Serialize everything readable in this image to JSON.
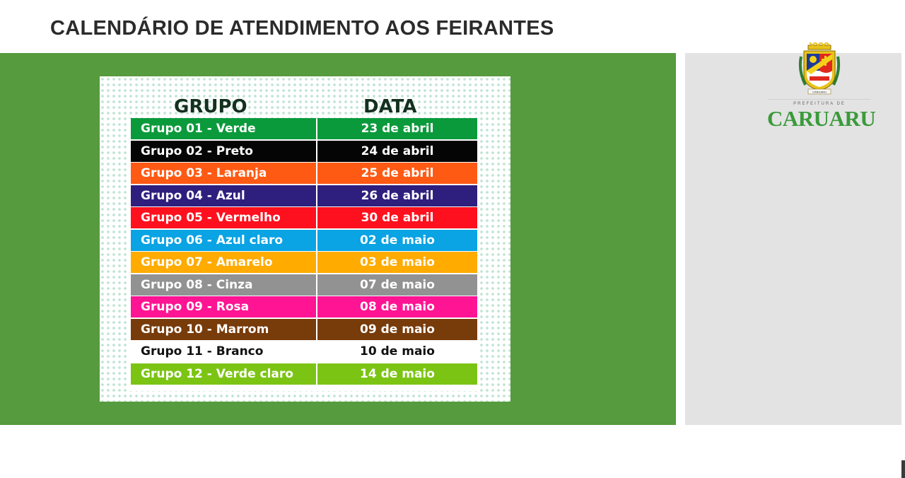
{
  "title": "CALENDÁRIO DE ATENDIMENTO AOS FEIRANTES",
  "table": {
    "header_group": "GRUPO",
    "header_date": "DATA",
    "rows": [
      {
        "group": "Grupo 01 - Verde",
        "date": "23 de abril",
        "color": "#0b9a3b"
      },
      {
        "group": "Grupo 02 - Preto",
        "date": "24 de abril",
        "color": "#050505"
      },
      {
        "group": "Grupo 03 - Laranja",
        "date": "25 de abril",
        "color": "#ff5a14"
      },
      {
        "group": "Grupo 04 - Azul",
        "date": "26 de abril",
        "color": "#2e1f7e"
      },
      {
        "group": "Grupo 05 - Vermelho",
        "date": "30 de abril",
        "color": "#ff101e"
      },
      {
        "group": "Grupo 06 - Azul claro",
        "date": "02 de maio",
        "color": "#0aa3e3"
      },
      {
        "group": "Grupo 07 - Amarelo",
        "date": "03 de maio",
        "color": "#ffab00"
      },
      {
        "group": "Grupo 08 - Cinza",
        "date": "07 de maio",
        "color": "#929292"
      },
      {
        "group": "Grupo 09 - Rosa",
        "date": "08 de maio",
        "color": "#ff1493"
      },
      {
        "group": "Grupo 10 - Marrom",
        "date": "09 de maio",
        "color": "#783b0a"
      },
      {
        "group": "Grupo 11 - Branco",
        "date": "10 de maio",
        "color": "#ffffff"
      },
      {
        "group": "Grupo 12 - Verde claro",
        "date": "14 de maio",
        "color": "#7cc414"
      }
    ]
  },
  "logo": {
    "small_text": "PREFEITURA DE",
    "big_text": "CARUARU",
    "crest_text": "CARUARU",
    "icon": "city-crest-icon"
  }
}
